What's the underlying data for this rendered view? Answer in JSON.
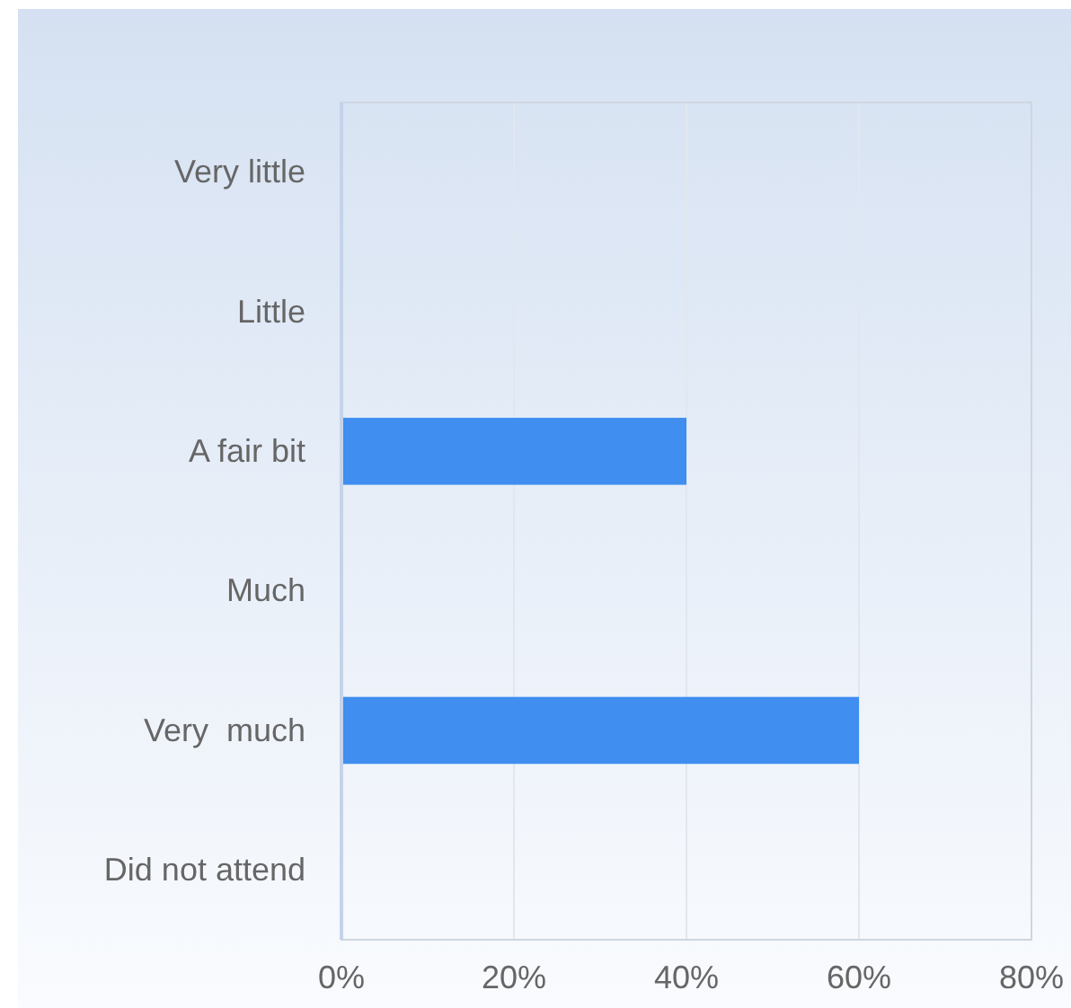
{
  "chart_data": {
    "type": "bar",
    "orientation": "horizontal",
    "categories": [
      "Very little",
      "Little",
      "A fair bit",
      "Much",
      "Very  much",
      "Did not attend"
    ],
    "values": [
      0,
      0,
      40,
      0,
      60,
      0
    ],
    "color": "#3f8ef0",
    "xlim": [
      0,
      80
    ],
    "xticks": [
      {
        "value": 0,
        "label": "0%"
      },
      {
        "value": 20,
        "label": "20%"
      },
      {
        "value": 40,
        "label": "40%"
      },
      {
        "value": 60,
        "label": "60%"
      },
      {
        "value": 80,
        "label": "80%"
      }
    ],
    "grid": "x"
  }
}
